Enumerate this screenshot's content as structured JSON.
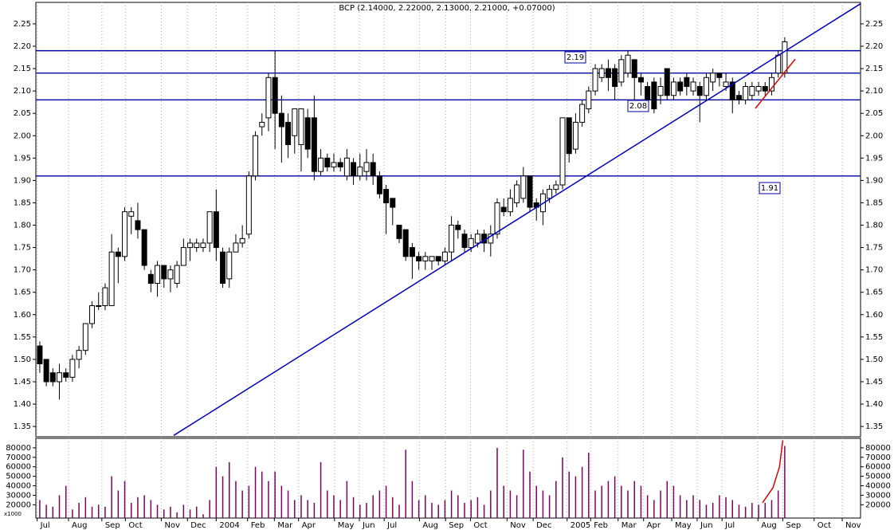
{
  "chart_data": [
    {
      "type": "candlestick",
      "title": "BCP (2.14000, 2.22000, 2.13000, 2.21000, +0.07000)",
      "open": [
        1.53,
        1.5,
        1.47,
        1.45,
        1.47,
        1.46,
        1.5,
        1.52,
        1.58,
        1.62,
        1.62,
        1.62,
        1.74,
        1.73,
        1.82,
        1.81,
        1.79,
        1.69,
        1.67,
        1.71,
        1.68,
        1.67,
        1.71,
        1.75,
        1.75,
        1.75,
        1.76,
        1.83,
        1.74,
        1.68,
        1.74,
        1.76,
        1.78,
        1.91,
        2.02,
        2.04,
        2.13,
        2.05,
        2.03,
        2.0,
        1.98,
        2.04,
        2.04,
        1.92,
        1.95,
        1.93,
        1.94,
        1.91,
        1.94,
        1.91,
        1.92,
        1.94,
        1.91,
        1.88,
        1.86,
        1.8,
        1.79,
        1.75,
        1.73,
        1.72,
        1.72,
        1.73,
        1.72,
        1.74,
        1.8,
        1.78,
        1.75,
        1.76,
        1.78,
        1.76,
        1.78,
        1.84,
        1.83,
        1.85,
        1.86,
        1.91,
        1.85,
        1.83,
        1.86,
        1.88,
        1.89,
        2.04,
        1.97,
        2.03,
        2.06,
        2.1,
        2.13,
        2.15,
        2.15,
        2.12,
        2.14,
        2.17,
        2.13,
        2.11,
        2.12,
        2.09,
        2.15,
        2.09,
        2.12,
        2.13,
        2.1,
        2.11,
        2.09,
        2.12,
        2.14,
        2.11,
        2.12,
        2.09,
        2.08,
        2.09,
        2.1,
        2.11,
        2.1,
        2.14,
        2.14
      ],
      "high": [
        1.54,
        1.5,
        1.48,
        1.49,
        1.48,
        1.51,
        1.53,
        1.58,
        1.63,
        1.65,
        1.67,
        1.78,
        1.75,
        1.84,
        1.84,
        1.85,
        1.79,
        1.7,
        1.72,
        1.71,
        1.71,
        1.72,
        1.77,
        1.77,
        1.77,
        1.77,
        1.83,
        1.88,
        1.75,
        1.75,
        1.78,
        1.8,
        1.92,
        2.01,
        2.05,
        2.14,
        2.19,
        2.09,
        2.05,
        2.06,
        2.06,
        2.06,
        2.09,
        1.97,
        1.96,
        1.96,
        1.95,
        1.97,
        1.95,
        1.96,
        1.97,
        1.96,
        1.92,
        1.89,
        1.86,
        1.8,
        1.79,
        1.76,
        1.74,
        1.74,
        1.73,
        1.73,
        1.75,
        1.82,
        1.81,
        1.79,
        1.78,
        1.79,
        1.79,
        1.8,
        1.86,
        1.86,
        1.88,
        1.9,
        1.93,
        1.91,
        1.86,
        1.88,
        1.89,
        1.9,
        2.04,
        2.04,
        2.05,
        2.08,
        2.11,
        2.16,
        2.16,
        2.17,
        2.16,
        2.18,
        2.19,
        2.17,
        2.14,
        2.12,
        2.13,
        2.13,
        2.15,
        2.13,
        2.13,
        2.14,
        2.13,
        2.12,
        2.14,
        2.15,
        2.14,
        2.14,
        2.13,
        2.1,
        2.12,
        2.12,
        2.12,
        2.12,
        2.14,
        2.19,
        2.22
      ],
      "low": [
        1.47,
        1.44,
        1.44,
        1.41,
        1.45,
        1.45,
        1.48,
        1.51,
        1.57,
        1.61,
        1.61,
        1.62,
        1.67,
        1.72,
        1.78,
        1.77,
        1.7,
        1.65,
        1.64,
        1.66,
        1.65,
        1.66,
        1.71,
        1.72,
        1.74,
        1.74,
        1.74,
        1.72,
        1.66,
        1.66,
        1.74,
        1.75,
        1.77,
        1.9,
        2.0,
        2.01,
        1.97,
        1.94,
        1.95,
        1.96,
        1.92,
        1.95,
        1.9,
        1.91,
        1.92,
        1.92,
        1.92,
        1.9,
        1.89,
        1.9,
        1.9,
        1.89,
        1.86,
        1.78,
        1.8,
        1.76,
        1.72,
        1.68,
        1.7,
        1.7,
        1.7,
        1.71,
        1.71,
        1.72,
        1.77,
        1.74,
        1.74,
        1.75,
        1.74,
        1.73,
        1.77,
        1.82,
        1.82,
        1.84,
        1.85,
        1.83,
        1.81,
        1.8,
        1.85,
        1.87,
        1.88,
        1.94,
        1.96,
        2.02,
        2.05,
        2.09,
        2.12,
        2.1,
        2.08,
        2.11,
        2.13,
        2.08,
        2.09,
        2.06,
        2.05,
        2.07,
        2.08,
        2.08,
        2.09,
        2.09,
        2.09,
        2.03,
        2.08,
        2.1,
        2.11,
        2.1,
        2.05,
        2.07,
        2.07,
        2.08,
        2.09,
        2.09,
        2.09,
        2.13,
        2.13
      ],
      "close": [
        1.49,
        1.45,
        1.45,
        1.47,
        1.46,
        1.5,
        1.52,
        1.58,
        1.62,
        1.62,
        1.66,
        1.74,
        1.73,
        1.83,
        1.83,
        1.79,
        1.71,
        1.67,
        1.71,
        1.68,
        1.7,
        1.71,
        1.75,
        1.76,
        1.76,
        1.76,
        1.83,
        1.75,
        1.67,
        1.74,
        1.76,
        1.77,
        1.91,
        2.0,
        2.03,
        2.13,
        2.05,
        2.02,
        1.98,
        2.06,
        2.06,
        1.97,
        1.92,
        1.95,
        1.93,
        1.94,
        1.93,
        1.95,
        1.91,
        1.93,
        1.94,
        1.91,
        1.87,
        1.85,
        1.84,
        1.77,
        1.73,
        1.73,
        1.72,
        1.73,
        1.73,
        1.72,
        1.74,
        1.8,
        1.79,
        1.75,
        1.77,
        1.78,
        1.76,
        1.78,
        1.85,
        1.83,
        1.86,
        1.89,
        1.91,
        1.84,
        1.84,
        1.87,
        1.88,
        1.89,
        2.04,
        1.96,
        2.03,
        2.07,
        2.1,
        2.15,
        2.15,
        2.13,
        2.11,
        2.17,
        2.18,
        2.13,
        2.12,
        2.08,
        2.06,
        2.11,
        2.09,
        2.12,
        2.1,
        2.11,
        2.12,
        2.09,
        2.13,
        2.14,
        2.13,
        2.12,
        2.08,
        2.08,
        2.11,
        2.11,
        2.11,
        2.1,
        2.13,
        2.18,
        2.21
      ],
      "up_color": "#ffffff",
      "down_color": "#000000",
      "xlim": [
        -0.6,
        125.6
      ],
      "ylim": [
        1.327,
        2.298
      ],
      "yticks": [
        1.35,
        {
          "value": 1.4,
          "label": "1.40"
        },
        1.45,
        {
          "value": 1.5,
          "label": "1.50"
        },
        1.55,
        {
          "value": 1.6,
          "label": "1.60"
        },
        1.65,
        {
          "value": 1.7,
          "label": "1.70"
        },
        1.75,
        {
          "value": 1.8,
          "label": "1.80"
        },
        1.85,
        {
          "value": 1.9,
          "label": "1.90"
        },
        1.95,
        {
          "value": 2.0,
          "label": "2.00"
        },
        2.05,
        {
          "value": 2.1,
          "label": "2.10"
        },
        2.15,
        {
          "value": 2.2,
          "label": "2.20"
        },
        2.25
      ],
      "hlines": [
        2.19,
        2.14,
        2.08,
        1.91
      ],
      "hline_color": "#0000a0",
      "annotations": [
        "2.19",
        "2.08",
        "1.91"
      ],
      "trendlines": [
        {
          "color": "#0000c0",
          "x": [
            20.5,
            125.6
          ],
          "y": [
            1.33,
            2.295
          ]
        },
        {
          "color": "#e00000",
          "x": [
            109.5,
            115.6
          ],
          "y": [
            2.061,
            2.171
          ]
        }
      ]
    },
    {
      "type": "bar",
      "unit_label": "x1000",
      "color": "#800060",
      "values": [
        25000,
        20000,
        18000,
        30000,
        40000,
        15000,
        22000,
        28000,
        18000,
        20000,
        18000,
        50000,
        35000,
        45000,
        22000,
        28000,
        30000,
        25000,
        20000,
        15000,
        18000,
        12000,
        20000,
        15000,
        18000,
        10000,
        25000,
        60000,
        50000,
        65000,
        45000,
        35000,
        40000,
        60000,
        55000,
        45000,
        55000,
        40000,
        35000,
        25000,
        30000,
        25000,
        22000,
        65000,
        35000,
        30000,
        25000,
        45000,
        28000,
        20000,
        22000,
        30000,
        35000,
        40000,
        28000,
        20000,
        78000,
        45000,
        25000,
        30000,
        22000,
        20000,
        25000,
        35000,
        30000,
        22000,
        25000,
        28000,
        20000,
        35000,
        80000,
        40000,
        35000,
        30000,
        78000,
        55000,
        40000,
        35000,
        30000,
        45000,
        70000,
        55000,
        50000,
        60000,
        75000,
        35000,
        40000,
        45000,
        50000,
        40000,
        35000,
        45000,
        40000,
        30000,
        25000,
        35000,
        45000,
        40000,
        30000,
        25000,
        30000,
        25000,
        20000,
        22000,
        30000,
        28000,
        25000,
        20000,
        18000,
        22000,
        20000,
        22000,
        25000,
        35000,
        82000
      ],
      "xlim": [
        -0.6,
        125.6
      ],
      "ylim": [
        6000,
        90000
      ],
      "yticks": [
        20000,
        30000,
        40000,
        50000,
        60000,
        70000,
        80000
      ],
      "xticks": [
        {
          "value": -0.4,
          "label": "Jul"
        },
        {
          "value": 4.4,
          "label": "Aug"
        },
        {
          "value": 9.5,
          "label": "Sep"
        },
        {
          "value": 13.1,
          "label": "Oct"
        },
        {
          "value": 18.6,
          "label": "Nov"
        },
        {
          "value": 22.6,
          "label": "Dec"
        },
        {
          "value": 27,
          "label": "2004"
        },
        {
          "value": 31.8,
          "label": "Feb"
        },
        {
          "value": 35.9,
          "label": "Mar"
        },
        {
          "value": 39.6,
          "label": "Apr"
        },
        {
          "value": 45.1,
          "label": "May"
        },
        {
          "value": 48.9,
          "label": "Jun"
        },
        {
          "value": 52.7,
          "label": "Jul"
        },
        {
          "value": 58.1,
          "label": "Aug"
        },
        {
          "value": 62.1,
          "label": "Sep"
        },
        {
          "value": 65.9,
          "label": "Oct"
        },
        {
          "value": 71.5,
          "label": "Nov"
        },
        {
          "value": 75.5,
          "label": "Dec"
        },
        {
          "value": 80.7,
          "label": "2005"
        },
        {
          "value": 84.3,
          "label": "Feb"
        },
        {
          "value": 88.5,
          "label": "Mar"
        },
        {
          "value": 92.4,
          "label": "Apr"
        },
        {
          "value": 96.7,
          "label": "May"
        },
        {
          "value": 100.6,
          "label": "Jun"
        },
        {
          "value": 104.4,
          "label": "Jul"
        },
        {
          "value": 109.9,
          "label": "Aug"
        },
        {
          "value": 113.7,
          "label": "Sep"
        },
        {
          "value": 118.5,
          "label": "Oct"
        },
        {
          "value": 122.8,
          "label": "Nov"
        }
      ],
      "trendlines": [
        {
          "color": "#e00000",
          "x": [
            110.6,
            112.2,
            113.2,
            113.7
          ],
          "y": [
            22000,
            38000,
            60000,
            88000
          ]
        }
      ]
    }
  ]
}
